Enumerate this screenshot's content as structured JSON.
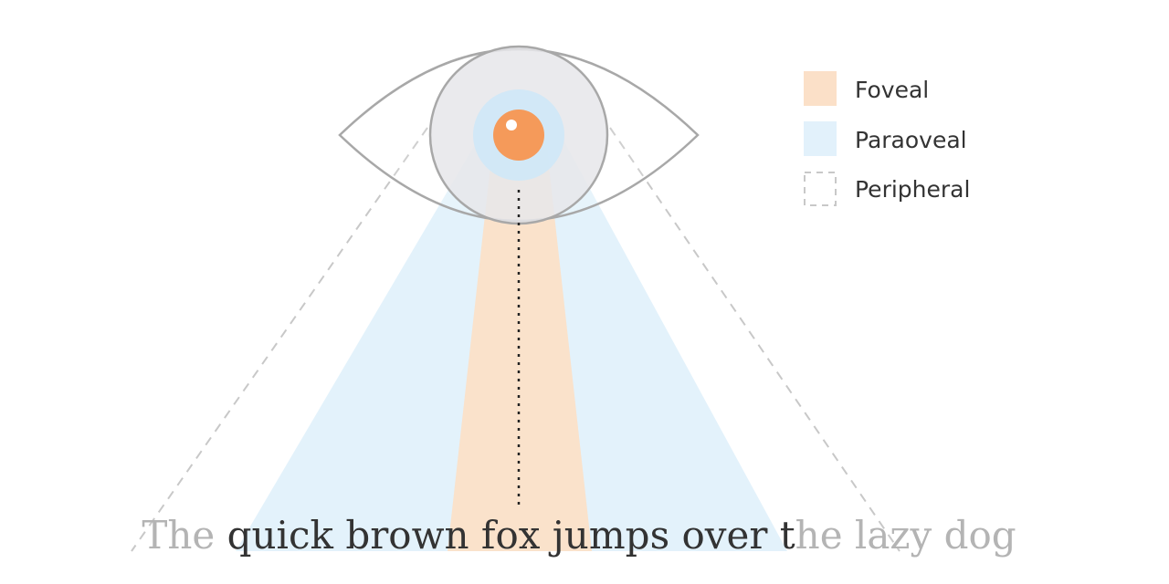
{
  "legend": {
    "items": [
      {
        "key": "foveal",
        "label": "Foveal",
        "swatch": "#fbe0c8",
        "style": "filled"
      },
      {
        "key": "parafoveal",
        "label": "Paraoveal",
        "swatch": "#e2f1fb",
        "style": "filled"
      },
      {
        "key": "peripheral",
        "label": "Peripheral",
        "swatch": "#c8c8c8",
        "style": "dashed"
      }
    ]
  },
  "sentence": {
    "peripheral_left": "The ",
    "parafoveal": "quick brown fox jumps over t",
    "peripheral_right": "he lazy dog"
  },
  "colors": {
    "foveal": "#fbe0c8",
    "parafoveal": "#e2f1fb",
    "pupil": "#f59a5a",
    "iris_ring": "#cfe8f7",
    "iris": "#e6e6ea",
    "outline": "#a8a8a8",
    "text_dark": "#333333",
    "text_faded": "#b4b4b4"
  },
  "icons": {
    "eye": "eye-icon",
    "pupil": "pupil-icon"
  }
}
